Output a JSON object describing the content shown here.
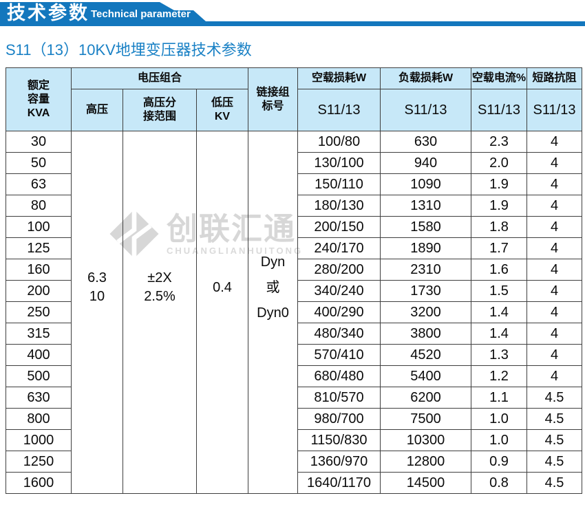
{
  "banner": {
    "title_zh": "技术参数",
    "title_en": "Technical parameter",
    "color": "#1377bd"
  },
  "page_title": "S11（13）10KV地埋变压器技术参数",
  "watermark": {
    "logo": "diamond-logo",
    "name_zh": "创联汇通",
    "name_en": "CHUANGLIANHUITONG"
  },
  "colors": {
    "banner_blue": "#1377bd",
    "title_blue": "#1a81c5",
    "header_bg": "#c7e8f8",
    "border": "#3e3e3e",
    "watermark_gray": "#d7d7d7"
  },
  "table": {
    "headers": {
      "capacity": "额定\n容量\nKVA",
      "voltage_combo": "电压组合",
      "high_voltage": "高压",
      "hv_tap_range": "高压分\n接范围",
      "low_voltage": "低压\nKV",
      "connection_group": "链接组\n标号",
      "no_load_loss": "空载损耗W",
      "load_loss": "负载损耗W",
      "no_load_current": "空载电流%",
      "short_circuit_impedance": "短路抗阻",
      "series_no_load_loss": "S11/13",
      "series_load_loss": "S11/13",
      "series_no_load_current": "S11/13",
      "series_impedance": "S11/13"
    },
    "shared": {
      "high_voltage": "6.3\n10",
      "hv_tap_range": "±2X\n2.5%",
      "low_voltage": "0.4",
      "connection_group": "Dyn\n或\nDyn0"
    },
    "rows": [
      {
        "capacity": "30",
        "no_load_loss": "100/80",
        "load_loss": "630",
        "no_load_current": "2.3",
        "impedance": "4"
      },
      {
        "capacity": "50",
        "no_load_loss": "130/100",
        "load_loss": "940",
        "no_load_current": "2.0",
        "impedance": "4"
      },
      {
        "capacity": "63",
        "no_load_loss": "150/110",
        "load_loss": "1090",
        "no_load_current": "1.9",
        "impedance": "4"
      },
      {
        "capacity": "80",
        "no_load_loss": "180/130",
        "load_loss": "1310",
        "no_load_current": "1.9",
        "impedance": "4"
      },
      {
        "capacity": "100",
        "no_load_loss": "200/150",
        "load_loss": "1580",
        "no_load_current": "1.8",
        "impedance": "4"
      },
      {
        "capacity": "125",
        "no_load_loss": "240/170",
        "load_loss": "1890",
        "no_load_current": "1.7",
        "impedance": "4"
      },
      {
        "capacity": "160",
        "no_load_loss": "280/200",
        "load_loss": "2310",
        "no_load_current": "1.6",
        "impedance": "4"
      },
      {
        "capacity": "200",
        "no_load_loss": "340/240",
        "load_loss": "1730",
        "no_load_current": "1.5",
        "impedance": "4"
      },
      {
        "capacity": "250",
        "no_load_loss": "400/290",
        "load_loss": "3200",
        "no_load_current": "1.4",
        "impedance": "4"
      },
      {
        "capacity": "315",
        "no_load_loss": "480/340",
        "load_loss": "3800",
        "no_load_current": "1.4",
        "impedance": "4"
      },
      {
        "capacity": "400",
        "no_load_loss": "570/410",
        "load_loss": "4520",
        "no_load_current": "1.3",
        "impedance": "4"
      },
      {
        "capacity": "500",
        "no_load_loss": "680/480",
        "load_loss": "5400",
        "no_load_current": "1.2",
        "impedance": "4"
      },
      {
        "capacity": "630",
        "no_load_loss": "810/570",
        "load_loss": "6200",
        "no_load_current": "1.1",
        "impedance": "4.5"
      },
      {
        "capacity": "800",
        "no_load_loss": "980/700",
        "load_loss": "7500",
        "no_load_current": "1.0",
        "impedance": "4.5"
      },
      {
        "capacity": "1000",
        "no_load_loss": "1150/830",
        "load_loss": "10300",
        "no_load_current": "1.0",
        "impedance": "4.5"
      },
      {
        "capacity": "1250",
        "no_load_loss": "1360/970",
        "load_loss": "12800",
        "no_load_current": "0.9",
        "impedance": "4.5"
      },
      {
        "capacity": "1600",
        "no_load_loss": "1640/1170",
        "load_loss": "14500",
        "no_load_current": "0.8",
        "impedance": "4.5"
      }
    ]
  }
}
